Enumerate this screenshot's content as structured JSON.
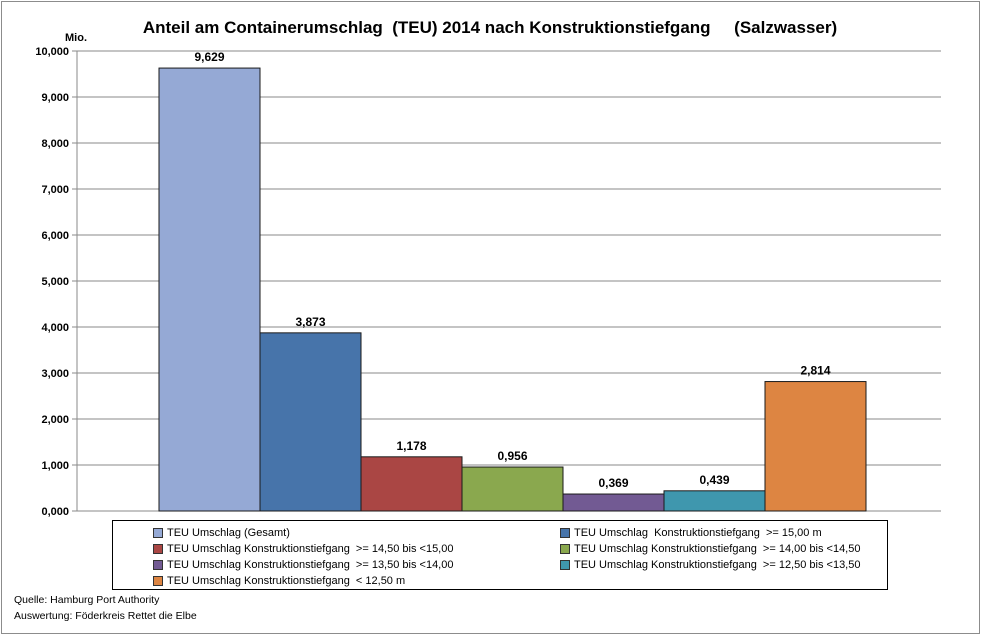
{
  "chart_data": {
    "type": "bar",
    "title": "Anteil am Containerumschlag  (TEU) 2014 nach Konstruktionstiefgang     (Salzwasser)",
    "unit_label": "Mio.",
    "ylim": [
      0,
      10
    ],
    "y_ticks": [
      0,
      1,
      2,
      3,
      4,
      5,
      6,
      7,
      8,
      9,
      10
    ],
    "y_tick_labels": [
      "0,000",
      "1,000",
      "2,000",
      "3,000",
      "4,000",
      "5,000",
      "6,000",
      "7,000",
      "8,000",
      "9,000",
      "10,000"
    ],
    "grid": true,
    "series": [
      {
        "name": "TEU Umschlag (Gesamt)",
        "value": 9.629,
        "label": "9,629",
        "color": "#95a9d5"
      },
      {
        "name": "TEU Umschlag  Konstruktionstiefgang  >= 15,00 m",
        "value": 3.873,
        "label": "3,873",
        "color": "#4774aa"
      },
      {
        "name": "TEU Umschlag Konstruktionstiefgang  >= 14,50 bis <15,00",
        "value": 1.178,
        "label": "1,178",
        "color": "#aa4644"
      },
      {
        "name": "TEU Umschlag Konstruktionstiefgang  >= 14,00 bis <14,50",
        "value": 0.956,
        "label": "0,956",
        "color": "#8aa84e"
      },
      {
        "name": "TEU Umschlag Konstruktionstiefgang  >= 13,50 bis <14,00",
        "value": 0.369,
        "label": "0,369",
        "color": "#725a93"
      },
      {
        "name": "TEU Umschlag Konstruktionstiefgang  >= 12,50 bis <13,50",
        "value": 0.439,
        "label": "0,439",
        "color": "#3f97ae"
      },
      {
        "name": "TEU Umschlag Konstruktionstiefgang  < 12,50 m",
        "value": 2.814,
        "label": "2,814",
        "color": "#dd8542"
      }
    ],
    "legend_placement": "bottom"
  },
  "footer": {
    "source": "Quelle: Hamburg Port Authority",
    "evaluation": "Auswertung: Föderkreis Rettet die Elbe"
  }
}
